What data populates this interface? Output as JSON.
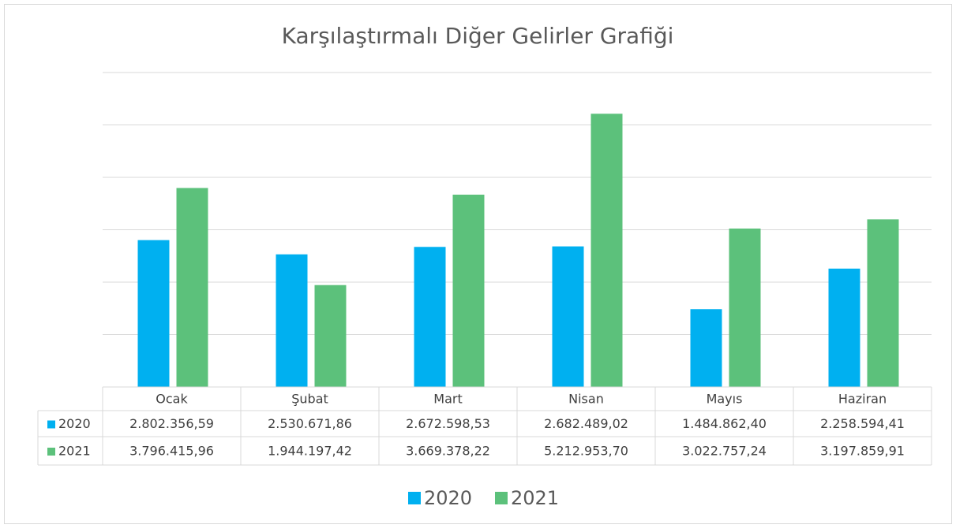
{
  "chart_data": {
    "type": "bar",
    "title": "Karşılaştırmalı Diğer Gelirler Grafiği",
    "categories": [
      "Ocak",
      "Şubat",
      "Mart",
      "Nisan",
      "Mayıs",
      "Haziran"
    ],
    "series": [
      {
        "name": "2020",
        "color": "#00b0f0",
        "values": [
          2802356.59,
          2530671.86,
          2672598.53,
          2682489.02,
          1484862.4,
          2258594.41
        ],
        "value_labels": [
          "2.802.356,59",
          "2.530.671,86",
          "2.672.598,53",
          "2.682.489,02",
          "1.484.862,40",
          "2.258.594,41"
        ]
      },
      {
        "name": "2021",
        "color": "#5cc17b",
        "values": [
          3796415.96,
          1944197.42,
          3669378.22,
          5212953.7,
          3022757.24,
          3197859.91
        ],
        "value_labels": [
          "3.796.415,96",
          "1.944.197,42",
          "3.669.378,22",
          "5.212.953,70",
          "3.022.757,24",
          "3.197.859,91"
        ]
      }
    ],
    "ylim": [
      0,
      6000000
    ],
    "yticks": [
      0,
      1000000,
      2000000,
      3000000,
      4000000,
      5000000,
      6000000
    ],
    "grid": true,
    "legend": "bottom"
  }
}
